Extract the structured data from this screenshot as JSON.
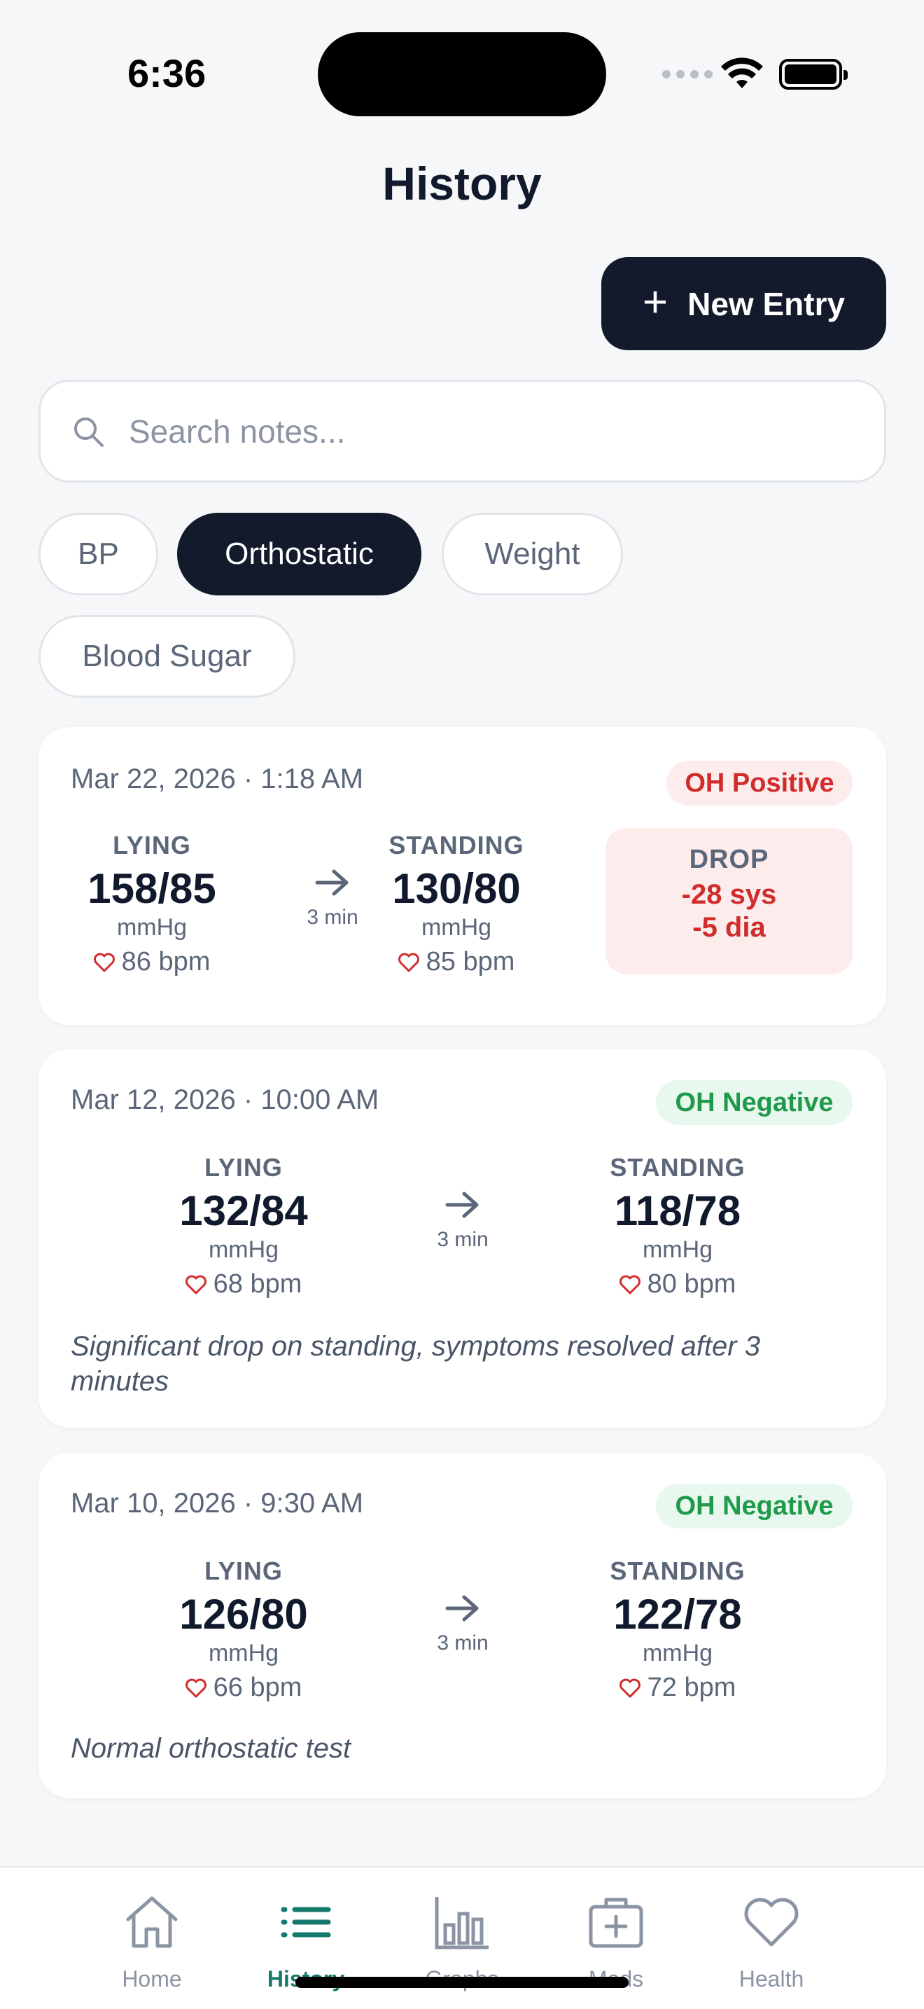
{
  "status_bar": {
    "time": "6:36"
  },
  "header": {
    "title": "History"
  },
  "actions": {
    "new_entry_label": "New Entry"
  },
  "search": {
    "placeholder": "Search notes..."
  },
  "filters": [
    "BP",
    "Orthostatic",
    "Weight",
    "Blood Sugar"
  ],
  "active_filter": "Orthostatic",
  "entries": [
    {
      "date": "Mar 22, 2026 · 1:18 AM",
      "status": "OH Positive",
      "lying_label": "LYING",
      "lying_bp": "158/85",
      "lying_unit": "mmHg",
      "lying_pulse": "86 bpm",
      "duration": "3 min",
      "standing_label": "STANDING",
      "standing_bp": "130/80",
      "standing_unit": "mmHg",
      "standing_pulse": "85 bpm",
      "drop_label": "DROP",
      "drop_sys": "-28 sys",
      "drop_dia": "-5 dia",
      "note": ""
    },
    {
      "date": "Mar 12, 2026 · 10:00 AM",
      "status": "OH Negative",
      "lying_label": "LYING",
      "lying_bp": "132/84",
      "lying_unit": "mmHg",
      "lying_pulse": "68 bpm",
      "duration": "3 min",
      "standing_label": "STANDING",
      "standing_bp": "118/78",
      "standing_unit": "mmHg",
      "standing_pulse": "80 bpm",
      "note": "Significant drop on standing, symptoms resolved after 3 minutes"
    },
    {
      "date": "Mar 10, 2026 · 9:30 AM",
      "status": "OH Negative",
      "lying_label": "LYING",
      "lying_bp": "126/80",
      "lying_unit": "mmHg",
      "lying_pulse": "66 bpm",
      "duration": "3 min",
      "standing_label": "STANDING",
      "standing_bp": "122/78",
      "standing_unit": "mmHg",
      "standing_pulse": "72 bpm",
      "note": "Normal orthostatic test"
    }
  ],
  "tabbar": {
    "items": [
      {
        "label": "Home",
        "icon": "house-icon"
      },
      {
        "label": "History",
        "icon": "list-icon"
      },
      {
        "label": "Graphs",
        "icon": "bar-chart-icon"
      },
      {
        "label": "Meds",
        "icon": "medkit-icon"
      },
      {
        "label": "Health",
        "icon": "heart-icon"
      }
    ],
    "active": "History"
  },
  "colors": {
    "primary_dark": "#121a2c",
    "accent_teal": "#14796a",
    "positive_red": "#d02c2c",
    "negative_green": "#1f9a4b",
    "background": "#f6f7f9"
  }
}
